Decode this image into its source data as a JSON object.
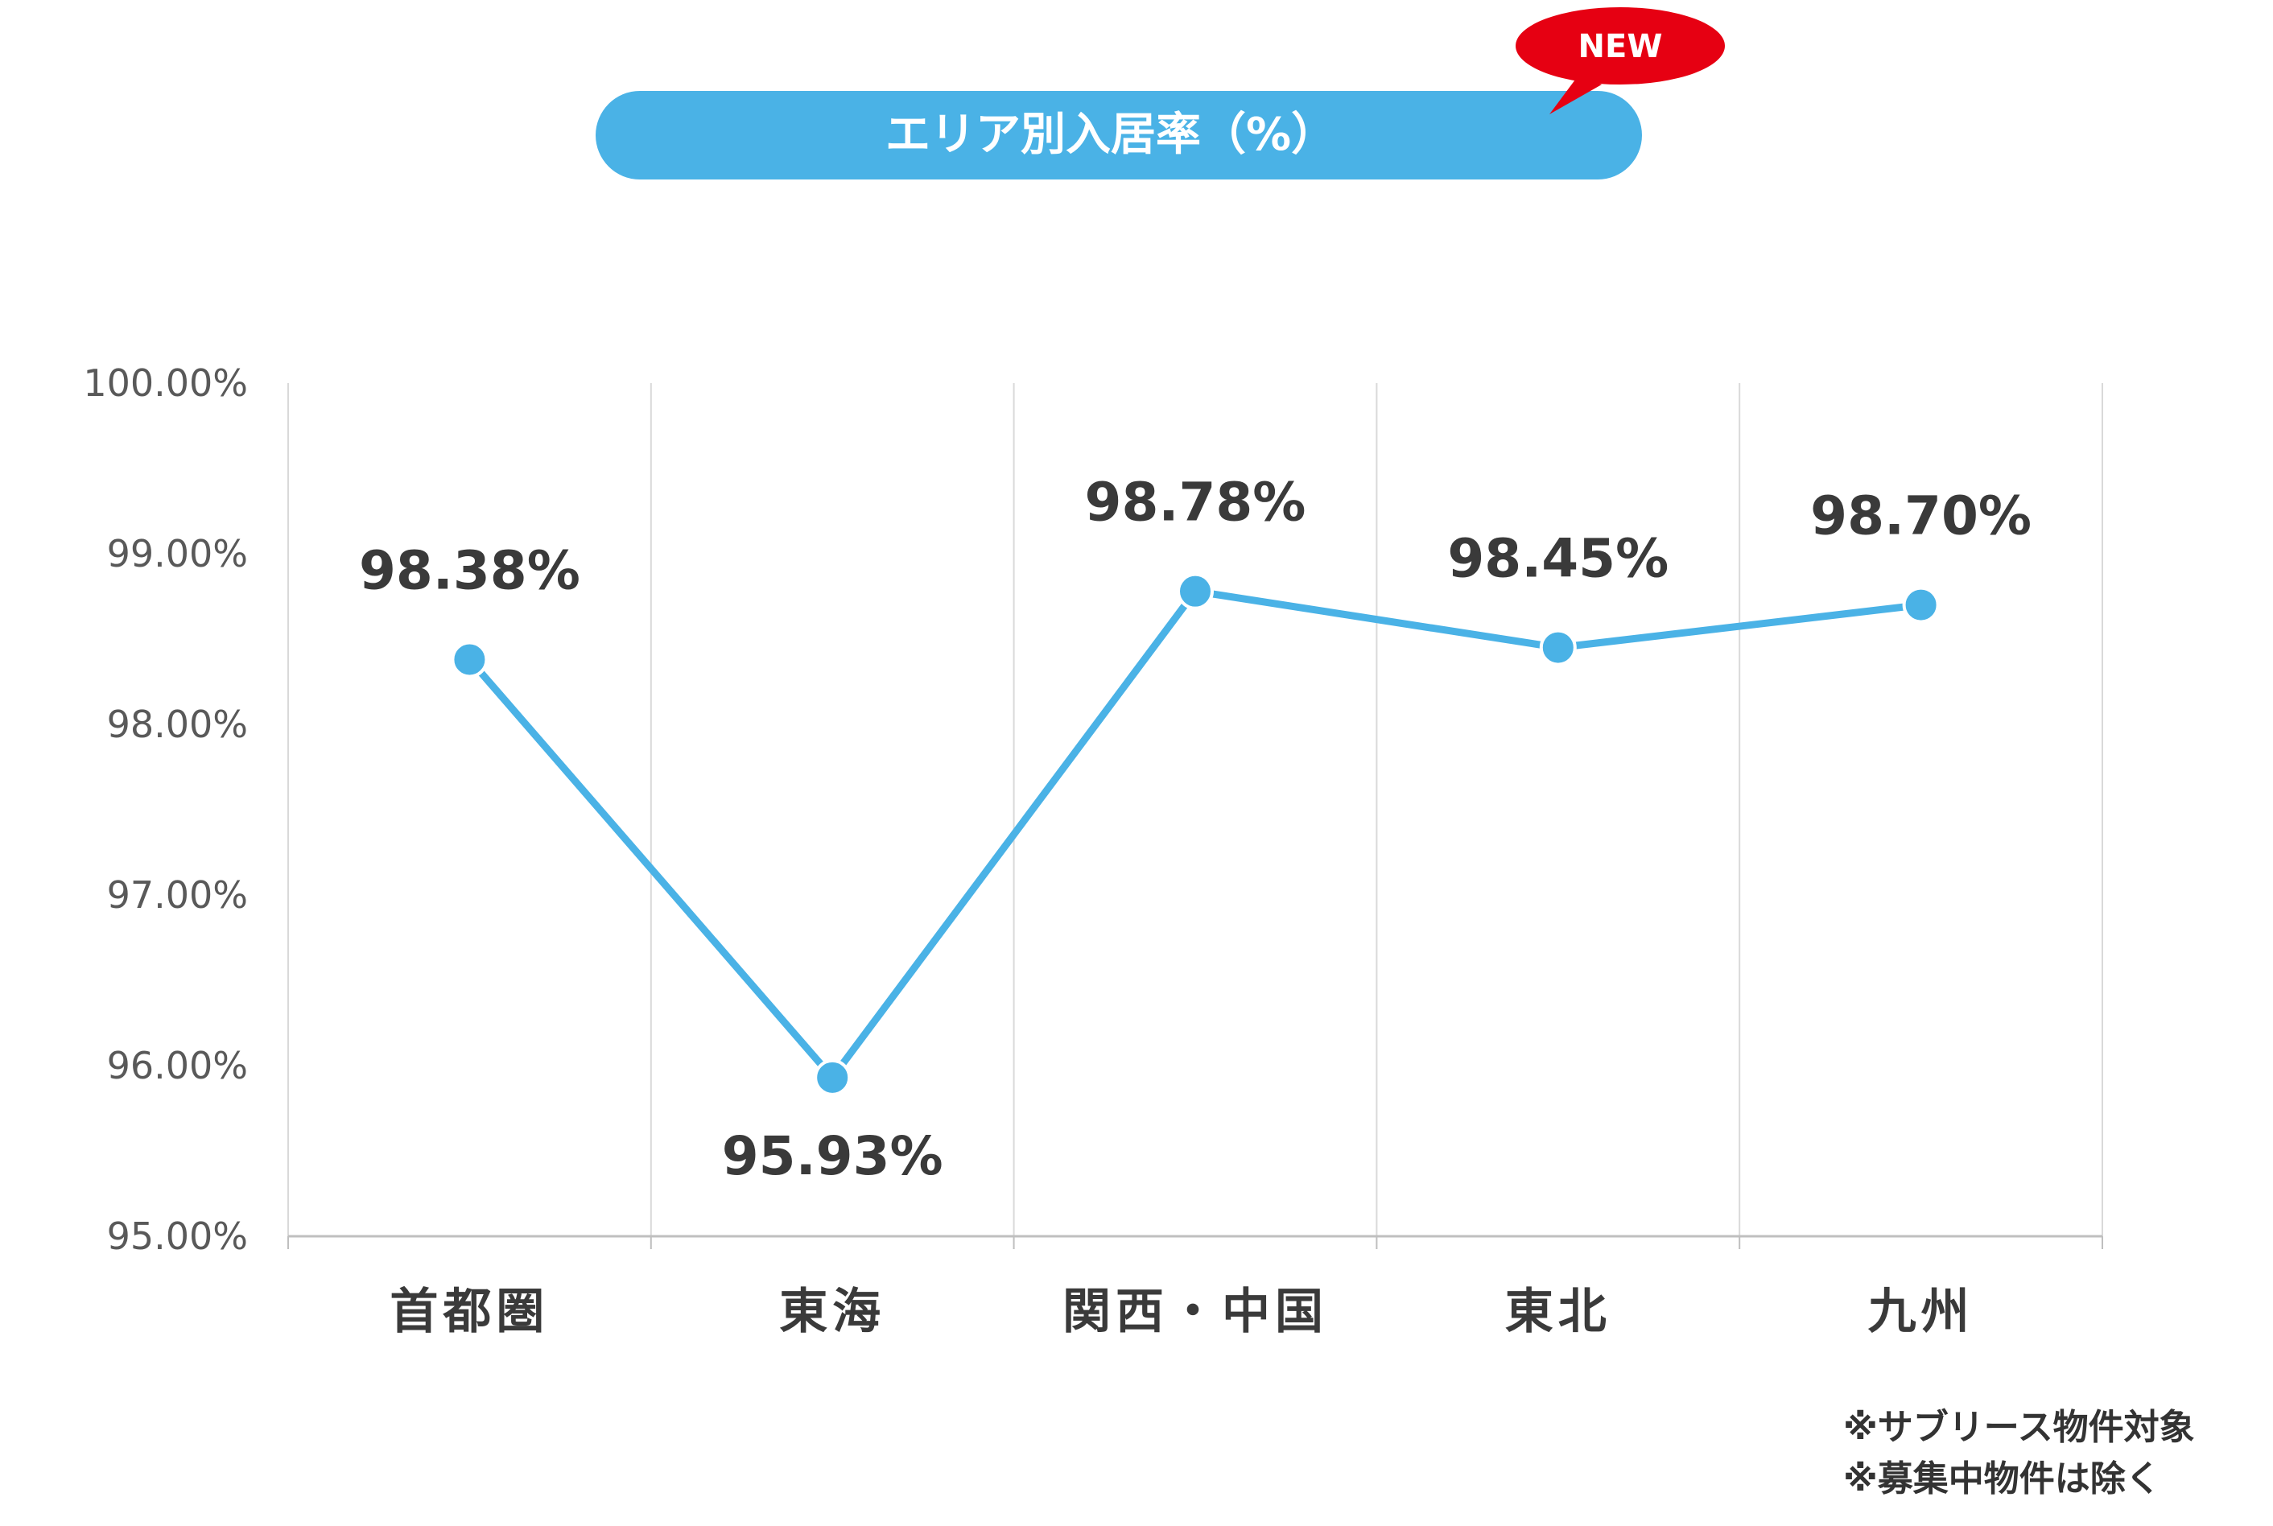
{
  "title_banner": {
    "text": "エリア別入居率（%）",
    "badge": "NEW"
  },
  "chart_data": {
    "type": "line",
    "title": "エリア別入居率（%）",
    "categories": [
      "首都圏",
      "東海",
      "関西・中国",
      "東北",
      "九州"
    ],
    "values": [
      98.38,
      95.93,
      98.78,
      98.45,
      98.7
    ],
    "data_labels": [
      "98.38%",
      "95.93%",
      "98.78%",
      "98.45%",
      "98.70%"
    ],
    "y_ticks": [
      "95.00%",
      "96.00%",
      "97.00%",
      "98.00%",
      "99.00%",
      "100.00%"
    ],
    "ylim": [
      95,
      100
    ],
    "xlabel": "",
    "ylabel": "",
    "grid": "vertical",
    "line_color": "#4AB2E6",
    "marker_color": "#4AB2E6"
  },
  "notes": [
    "※サブリース物件対象",
    "※募集中物件は除く"
  ],
  "colors": {
    "banner": "#4AB2E6",
    "badge": "#E60012",
    "grid": "#D9D9D9",
    "text": "#3A3A3A"
  }
}
